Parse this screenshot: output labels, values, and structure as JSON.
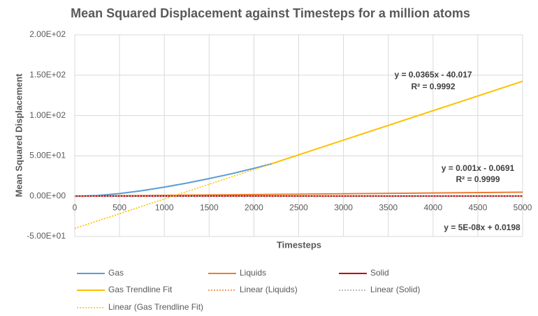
{
  "chart_data": {
    "type": "line",
    "title": "Mean Squared Displacement against Timesteps for a million atoms",
    "x_label": "Timesteps",
    "y_label": "Mean Squared Displacement",
    "xlim": [
      0,
      5000
    ],
    "xticks": [
      0,
      500,
      1000,
      1500,
      2000,
      2500,
      3000,
      3500,
      4000,
      4500,
      5000
    ],
    "ylim": [
      -50,
      200
    ],
    "yticks": [
      {
        "value": -50,
        "label": "-5.00E+01"
      },
      {
        "value": 0,
        "label": "0.00E+00"
      },
      {
        "value": 50,
        "label": "5.00E+01"
      },
      {
        "value": 100,
        "label": "1.00E+02"
      },
      {
        "value": 150,
        "label": "1.50E+02"
      },
      {
        "value": 200,
        "label": "2.00E+02"
      }
    ],
    "grid": true,
    "series": [
      {
        "name": "Gas",
        "color": "#5b9bd5",
        "style": "solid",
        "x": [
          0,
          250,
          500,
          750,
          1000,
          1250,
          1500,
          1750,
          2000,
          2200
        ],
        "values": [
          0,
          0.8,
          3.2,
          6.8,
          11.2,
          16.2,
          21.8,
          27.8,
          34.5,
          40.2
        ]
      },
      {
        "name": "Liquids",
        "color": "#ed7d31",
        "style": "solid",
        "x": [
          0,
          5000
        ],
        "values": [
          0,
          4.93
        ]
      },
      {
        "name": "Solid",
        "color": "#c00000",
        "style": "solid",
        "x": [
          0,
          5000
        ],
        "values": [
          0.02,
          0.02
        ]
      },
      {
        "name": "Gas Trendline Fit",
        "color": "#ffc000",
        "style": "solid",
        "x": [
          2200,
          5000
        ],
        "values": [
          40.3,
          142.5
        ]
      },
      {
        "name": "Linear (Liquids)",
        "color": "#ed7d31",
        "style": "dotted",
        "x": [
          0,
          5000
        ],
        "values": [
          -0.07,
          4.93
        ]
      },
      {
        "name": "Linear (Solid)",
        "color": "#a5a5a5",
        "style": "dotted",
        "x": [
          0,
          5000
        ],
        "values": [
          0.02,
          0.02
        ]
      },
      {
        "name": "Linear (Gas Trendline Fit)",
        "color": "#ffc000",
        "style": "dotted",
        "x": [
          0,
          5000
        ],
        "values": [
          -40.0,
          142.5
        ]
      }
    ],
    "annotations": [
      "y = 0.0365x - 40.017",
      "R² = 0.9992",
      "y = 0.001x - 0.0691",
      "R² = 0.9999",
      "y = 5E-08x + 0.0198"
    ]
  }
}
